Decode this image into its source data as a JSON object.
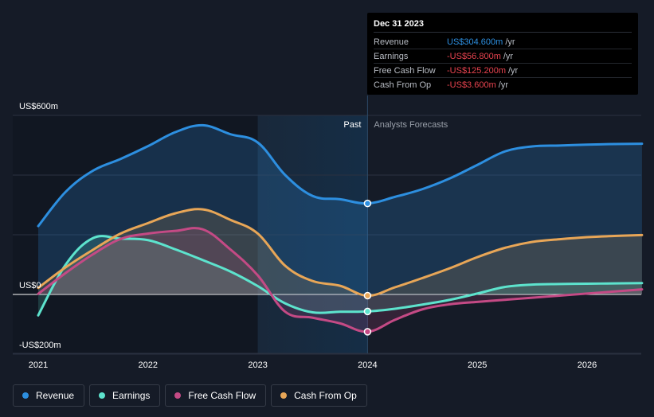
{
  "chart_data": {
    "type": "line",
    "title": "",
    "xlabel": "",
    "ylabel": "",
    "x_ticks": [
      "2021",
      "2022",
      "2023",
      "2024",
      "2025",
      "2026"
    ],
    "y_ticks": [
      {
        "value": 600,
        "label": "US$600m"
      },
      {
        "value": 0,
        "label": "US$0"
      },
      {
        "value": -200,
        "label": "-US$200m"
      }
    ],
    "ylim": [
      -200,
      600
    ],
    "xlim": [
      2020.9,
      2026.5
    ],
    "past_forecast_split": 2024.0,
    "highlight_start": 2023.0,
    "past_label": "Past",
    "forecast_label": "Analysts Forecasts",
    "series": [
      {
        "name": "Revenue",
        "color": "#2d8fe0",
        "points": [
          [
            2021.0,
            229
          ],
          [
            2021.25,
            344
          ],
          [
            2021.5,
            415
          ],
          [
            2021.75,
            454
          ],
          [
            2022.0,
            497
          ],
          [
            2022.25,
            544
          ],
          [
            2022.5,
            567
          ],
          [
            2022.75,
            537
          ],
          [
            2023.0,
            509
          ],
          [
            2023.25,
            400
          ],
          [
            2023.5,
            330
          ],
          [
            2023.75,
            319
          ],
          [
            2024.0,
            305
          ],
          [
            2024.25,
            327
          ],
          [
            2024.5,
            353
          ],
          [
            2024.75,
            389
          ],
          [
            2025.0,
            434
          ],
          [
            2025.25,
            479
          ],
          [
            2025.5,
            496
          ],
          [
            2025.75,
            499
          ],
          [
            2026.0,
            502
          ],
          [
            2026.25,
            504
          ],
          [
            2026.5,
            505
          ]
        ]
      },
      {
        "name": "Earnings",
        "color": "#5de3cd",
        "points": [
          [
            2021.0,
            -70
          ],
          [
            2021.25,
            100
          ],
          [
            2021.5,
            189
          ],
          [
            2021.75,
            187
          ],
          [
            2022.0,
            182
          ],
          [
            2022.25,
            151
          ],
          [
            2022.5,
            115
          ],
          [
            2022.75,
            77
          ],
          [
            2023.0,
            28
          ],
          [
            2023.25,
            -30
          ],
          [
            2023.5,
            -60
          ],
          [
            2023.75,
            -58
          ],
          [
            2024.0,
            -57
          ],
          [
            2024.25,
            -48
          ],
          [
            2024.5,
            -34
          ],
          [
            2024.75,
            -18
          ],
          [
            2025.0,
            3
          ],
          [
            2025.25,
            25
          ],
          [
            2025.5,
            33
          ],
          [
            2025.75,
            35
          ],
          [
            2026.0,
            36
          ],
          [
            2026.25,
            37
          ],
          [
            2026.5,
            38
          ]
        ]
      },
      {
        "name": "Free Cash Flow",
        "color": "#c44a85",
        "points": [
          [
            2021.0,
            2
          ],
          [
            2021.25,
            72
          ],
          [
            2021.5,
            135
          ],
          [
            2021.75,
            186
          ],
          [
            2022.0,
            204
          ],
          [
            2022.25,
            213
          ],
          [
            2022.5,
            218
          ],
          [
            2022.75,
            151
          ],
          [
            2023.0,
            64
          ],
          [
            2023.25,
            -58
          ],
          [
            2023.5,
            -78
          ],
          [
            2023.75,
            -97
          ],
          [
            2024.0,
            -125
          ],
          [
            2024.25,
            -85
          ],
          [
            2024.5,
            -50
          ],
          [
            2024.75,
            -33
          ],
          [
            2025.0,
            -25
          ],
          [
            2025.25,
            -18
          ],
          [
            2025.5,
            -11
          ],
          [
            2025.75,
            -4
          ],
          [
            2026.0,
            3
          ],
          [
            2026.25,
            10
          ],
          [
            2026.5,
            17
          ]
        ]
      },
      {
        "name": "Cash From Op",
        "color": "#e8a657",
        "points": [
          [
            2021.0,
            22
          ],
          [
            2021.25,
            91
          ],
          [
            2021.5,
            150
          ],
          [
            2021.75,
            204
          ],
          [
            2022.0,
            239
          ],
          [
            2022.25,
            272
          ],
          [
            2022.5,
            285
          ],
          [
            2022.75,
            250
          ],
          [
            2023.0,
            204
          ],
          [
            2023.25,
            96
          ],
          [
            2023.5,
            45
          ],
          [
            2023.75,
            29
          ],
          [
            2024.0,
            -4
          ],
          [
            2024.25,
            24
          ],
          [
            2024.5,
            55
          ],
          [
            2024.75,
            88
          ],
          [
            2025.0,
            125
          ],
          [
            2025.25,
            156
          ],
          [
            2025.5,
            176
          ],
          [
            2025.75,
            185
          ],
          [
            2026.0,
            192
          ],
          [
            2026.25,
            196
          ],
          [
            2026.5,
            199
          ]
        ]
      }
    ],
    "markers": [
      {
        "series": "Revenue",
        "x": 2024.0,
        "y": 305
      },
      {
        "series": "Earnings",
        "x": 2024.0,
        "y": -57
      },
      {
        "series": "Free Cash Flow",
        "x": 2024.0,
        "y": -125
      },
      {
        "series": "Cash From Op",
        "x": 2024.0,
        "y": -4
      }
    ]
  },
  "tooltip": {
    "date": "Dec 31 2023",
    "rows": [
      {
        "label": "Revenue",
        "value": "US$304.600m",
        "unit": "/yr",
        "color": "#2d8fe0"
      },
      {
        "label": "Earnings",
        "value": "-US$56.800m",
        "unit": "/yr",
        "color": "#e8434f"
      },
      {
        "label": "Free Cash Flow",
        "value": "-US$125.200m",
        "unit": "/yr",
        "color": "#e8434f"
      },
      {
        "label": "Cash From Op",
        "value": "-US$3.600m",
        "unit": "/yr",
        "color": "#e8434f"
      }
    ]
  },
  "legend": [
    {
      "label": "Revenue",
      "color": "#2d8fe0"
    },
    {
      "label": "Earnings",
      "color": "#5de3cd"
    },
    {
      "label": "Free Cash Flow",
      "color": "#c44a85"
    },
    {
      "label": "Cash From Op",
      "color": "#e8a657"
    }
  ]
}
